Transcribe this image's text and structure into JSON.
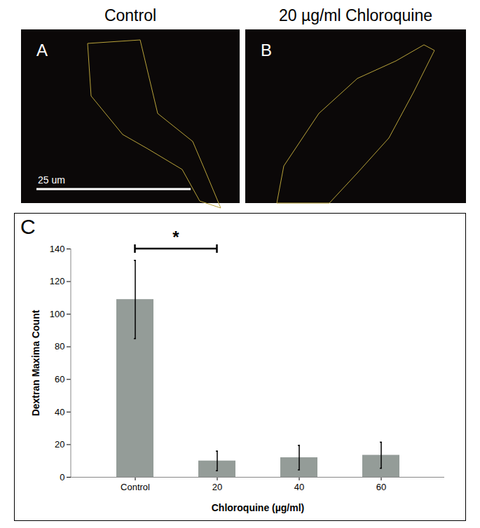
{
  "images": [
    {
      "label": "A",
      "title": "Control",
      "scale_bar": "25 um"
    },
    {
      "label": "B",
      "title": "20 µg/ml Chloroquine"
    }
  ],
  "chart_data": {
    "type": "bar",
    "x_label": "Chloroquine (µg/ml)",
    "y_label": "Dextran Maxima Count",
    "categories": [
      "Control",
      "20",
      "40",
      "60"
    ],
    "values": [
      109,
      10,
      12,
      13.5
    ],
    "errors": [
      24,
      6,
      7.5,
      8
    ],
    "color": "#949c98",
    "ylim": [
      0,
      140
    ],
    "yticks": [
      0,
      20,
      40,
      60,
      80,
      100,
      120,
      140
    ],
    "grid": false,
    "annotations": [
      {
        "text": "C",
        "position": "top-left"
      },
      {
        "text": "*",
        "from": "Control",
        "to": "20",
        "y": 140
      }
    ]
  }
}
